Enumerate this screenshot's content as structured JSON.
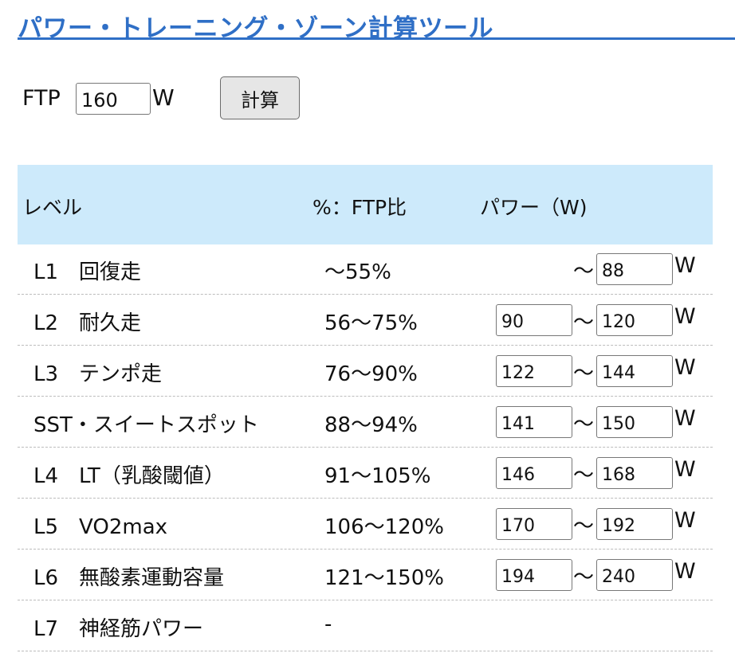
{
  "title": "パワー・トレーニング・ゾーン計算ツール",
  "ftp": {
    "label": "FTP",
    "value": "160",
    "unit": "W",
    "calc_label": "計算"
  },
  "table": {
    "headers": {
      "level": "レベル",
      "pct": "%：FTP比",
      "power": "パワー（W)"
    },
    "tilde": "〜",
    "unit": "W",
    "rows": [
      {
        "level": "L1　回復走",
        "pct": "〜55%",
        "min": null,
        "max": "88"
      },
      {
        "level": "L2　耐久走",
        "pct": "56〜75%",
        "min": "90",
        "max": "120"
      },
      {
        "level": "L3　テンポ走",
        "pct": "76〜90%",
        "min": "122",
        "max": "144"
      },
      {
        "level": "SST・スイートスポット",
        "pct": "88〜94%",
        "min": "141",
        "max": "150"
      },
      {
        "level": "L4　LT（乳酸閾値）",
        "pct": "91〜105%",
        "min": "146",
        "max": "168"
      },
      {
        "level": "L5　VO2max",
        "pct": "106〜120%",
        "min": "170",
        "max": "192"
      },
      {
        "level": "L6　無酸素運動容量",
        "pct": "121〜150%",
        "min": "194",
        "max": "240"
      },
      {
        "level": "L7　神経筋パワー",
        "pct": "-",
        "min": null,
        "max": null
      }
    ]
  }
}
